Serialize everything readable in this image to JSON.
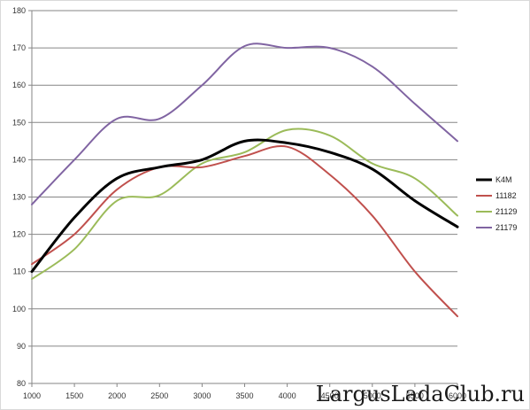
{
  "chart_data": {
    "type": "line",
    "title": "",
    "xlabel": "",
    "ylabel": "",
    "xlim": [
      1000,
      6000
    ],
    "ylim": [
      80,
      180
    ],
    "x_ticks": [
      1000,
      1500,
      2000,
      2500,
      3000,
      3500,
      4000,
      4500,
      5000,
      5500,
      6000
    ],
    "x_tick_labels": [
      "1000",
      "1500",
      "2000",
      "2500",
      "3000",
      "3500",
      "4000",
      "4500",
      "5000",
      "5500",
      "6000"
    ],
    "y_ticks": [
      80,
      90,
      100,
      110,
      120,
      130,
      140,
      150,
      160,
      170,
      180
    ],
    "y_tick_labels": [
      "80",
      "90",
      "100",
      "110",
      "120",
      "130",
      "140",
      "150",
      "160",
      "170",
      "180"
    ],
    "grid": "horizontal",
    "legend_position": "right",
    "x": [
      1000,
      1500,
      2000,
      2500,
      3000,
      3500,
      4000,
      4500,
      5000,
      5500,
      6000
    ],
    "series": [
      {
        "name": "K4M",
        "color": "#000000",
        "values": [
          110,
          124.5,
          135,
          138,
          140,
          145,
          144.5,
          142,
          137.5,
          129,
          122
        ]
      },
      {
        "name": "11182",
        "color": "#c0504d",
        "values": [
          112,
          120,
          132,
          138,
          138,
          141,
          143.5,
          136,
          125,
          110,
          98
        ]
      },
      {
        "name": "21129",
        "color": "#9bbb59",
        "values": [
          108,
          116,
          129,
          130.5,
          139,
          142,
          148,
          146.5,
          139,
          135,
          125
        ]
      },
      {
        "name": "21179",
        "color": "#8064a2",
        "values": [
          128,
          140,
          151,
          151,
          160,
          170.5,
          170,
          170,
          165,
          155,
          145
        ]
      }
    ]
  },
  "watermark": "LargusLadaClub.ru"
}
